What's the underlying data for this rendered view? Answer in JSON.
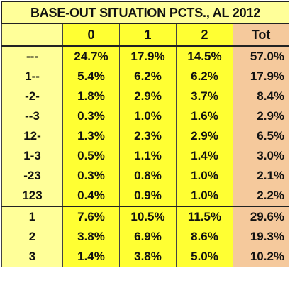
{
  "title": "BASE-OUT SITUATION PCTS., AL 2012",
  "header": {
    "label": "",
    "cols": [
      "0",
      "1",
      "2"
    ],
    "tot": "Tot"
  },
  "bases": [
    {
      "label": "---",
      "values": [
        "24.7%",
        "17.9%",
        "14.5%"
      ],
      "tot": "57.0%"
    },
    {
      "label": "1--",
      "values": [
        "5.4%",
        "6.2%",
        "6.2%"
      ],
      "tot": "17.9%"
    },
    {
      "label": "-2-",
      "values": [
        "1.8%",
        "2.9%",
        "3.7%"
      ],
      "tot": "8.4%"
    },
    {
      "label": "--3",
      "values": [
        "0.3%",
        "1.0%",
        "1.6%"
      ],
      "tot": "2.9%"
    },
    {
      "label": "12-",
      "values": [
        "1.3%",
        "2.3%",
        "2.9%"
      ],
      "tot": "6.5%"
    },
    {
      "label": "1-3",
      "values": [
        "0.5%",
        "1.1%",
        "1.4%"
      ],
      "tot": "3.0%"
    },
    {
      "label": "-23",
      "values": [
        "0.3%",
        "0.8%",
        "1.0%"
      ],
      "tot": "2.1%"
    },
    {
      "label": "123",
      "values": [
        "0.4%",
        "0.9%",
        "1.0%"
      ],
      "tot": "2.2%"
    }
  ],
  "occupied": [
    {
      "label": "1",
      "values": [
        "7.6%",
        "10.5%",
        "11.5%"
      ],
      "tot": "29.6%"
    },
    {
      "label": "2",
      "values": [
        "3.8%",
        "6.9%",
        "8.6%"
      ],
      "tot": "19.3%"
    },
    {
      "label": "3",
      "values": [
        "1.4%",
        "3.8%",
        "5.0%"
      ],
      "tot": "10.2%"
    }
  ],
  "colors": {
    "label_bg": "#ffff99",
    "cell_bg": "#ffff33",
    "tot_bg": "#f5c99c"
  }
}
